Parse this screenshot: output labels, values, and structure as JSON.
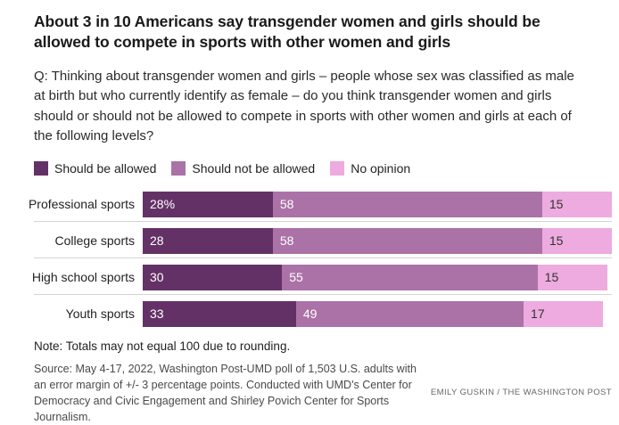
{
  "header": {
    "title": "About 3 in 10 Americans say transgender women and girls should be allowed to compete in sports with other women and girls",
    "question": "Q: Thinking about transgender women and girls – people whose sex was classified as male at birth but who currently identify as female – do you think transgender women and girls should or should not be allowed to compete in sports with other women and girls at each of the following levels?"
  },
  "legend": [
    {
      "label": "Should be allowed",
      "color": "#643167"
    },
    {
      "label": "Should not be allowed",
      "color": "#ab72a7"
    },
    {
      "label": "No opinion",
      "color": "#edabdf"
    }
  ],
  "chart_data": {
    "type": "bar",
    "orientation": "horizontal",
    "stacked": true,
    "title": "About 3 in 10 Americans say transgender women and girls should be allowed to compete in sports with other women and girls",
    "categories": [
      "Professional sports",
      "College sports",
      "High school sports",
      "Youth sports"
    ],
    "series": [
      {
        "name": "Should be allowed",
        "color": "#643167",
        "text_color": "#ffffff",
        "values": [
          28,
          28,
          30,
          33
        ]
      },
      {
        "name": "Should not be allowed",
        "color": "#ab72a7",
        "text_color": "#ffffff",
        "values": [
          58,
          58,
          55,
          49
        ]
      },
      {
        "name": "No opinion",
        "color": "#edabdf",
        "text_color": "#333333",
        "values": [
          15,
          15,
          15,
          17
        ]
      }
    ],
    "first_label_suffix": "%",
    "xlim": [
      0,
      101
    ],
    "grid": false,
    "legend_position": "top",
    "separator_color": "#d4d4d4"
  },
  "footer": {
    "note": "Note: Totals may not equal 100 due to rounding.",
    "source": "Source: May 4-17, 2022, Washington Post-UMD poll of 1,503 U.S. adults with an error margin of +/- 3 percentage points. Conducted with UMD's Center for Democracy and Civic Engagement and Shirley Povich Center for Sports Journalism.",
    "credit": "EMILY GUSKIN / THE WASHINGTON POST"
  }
}
